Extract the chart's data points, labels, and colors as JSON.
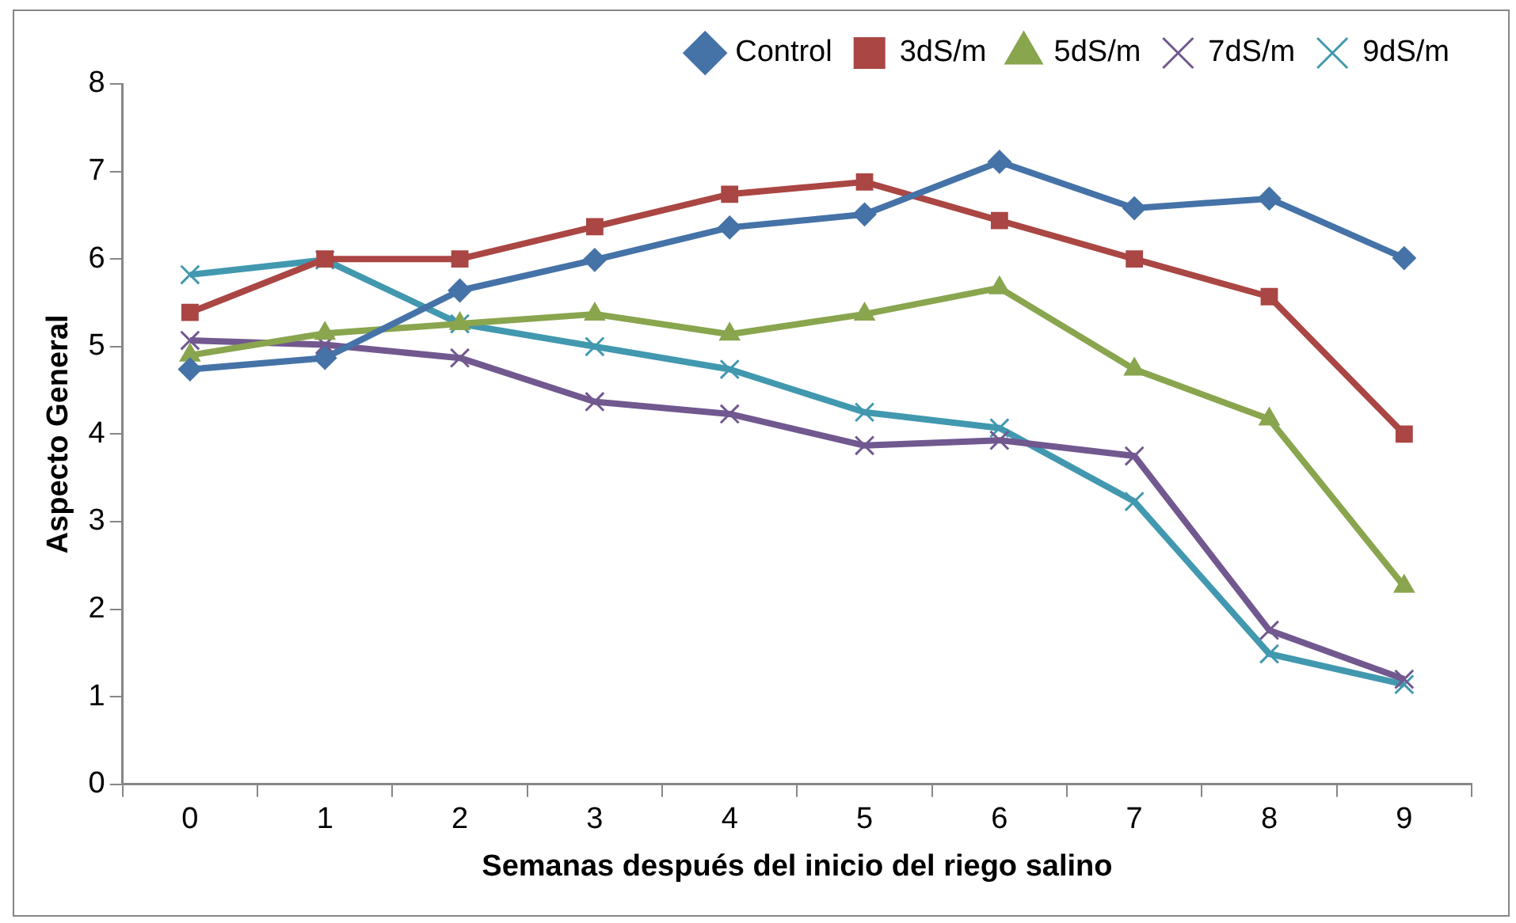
{
  "chart_data": {
    "type": "line",
    "xlabel": "Semanas después del inicio del riego salino",
    "ylabel": "Aspecto General",
    "categories": [
      "0",
      "1",
      "2",
      "3",
      "4",
      "5",
      "6",
      "7",
      "8",
      "9"
    ],
    "series": [
      {
        "name": "Control",
        "color": "#4572a7",
        "marker": "diamond",
        "values": [
          4.74,
          4.87,
          5.64,
          5.99,
          6.36,
          6.51,
          7.11,
          6.58,
          6.69,
          6.01
        ]
      },
      {
        "name": "3dS/m",
        "color": "#aa4643",
        "marker": "square",
        "values": [
          5.39,
          6.0,
          6.0,
          6.37,
          6.74,
          6.88,
          6.44,
          6.0,
          5.57,
          4.0
        ]
      },
      {
        "name": "5dS/m",
        "color": "#89a54e",
        "marker": "triangle",
        "values": [
          4.9,
          5.15,
          5.26,
          5.37,
          5.14,
          5.37,
          5.67,
          4.74,
          4.17,
          2.26
        ]
      },
      {
        "name": "7dS/m",
        "color": "#71588f",
        "marker": "cross",
        "values": [
          5.07,
          5.02,
          4.87,
          4.37,
          4.23,
          3.87,
          3.93,
          3.75,
          1.76,
          1.2
        ]
      },
      {
        "name": "9dS/m",
        "color": "#4198af",
        "marker": "cross",
        "values": [
          5.82,
          5.99,
          5.26,
          5.0,
          4.74,
          4.25,
          4.07,
          3.23,
          1.49,
          1.14
        ]
      }
    ],
    "ylim": [
      0,
      8
    ],
    "yticks": [
      0,
      1,
      2,
      3,
      4,
      5,
      6,
      7,
      8
    ],
    "grid": false,
    "legend": "top right",
    "line_style": "solid"
  }
}
